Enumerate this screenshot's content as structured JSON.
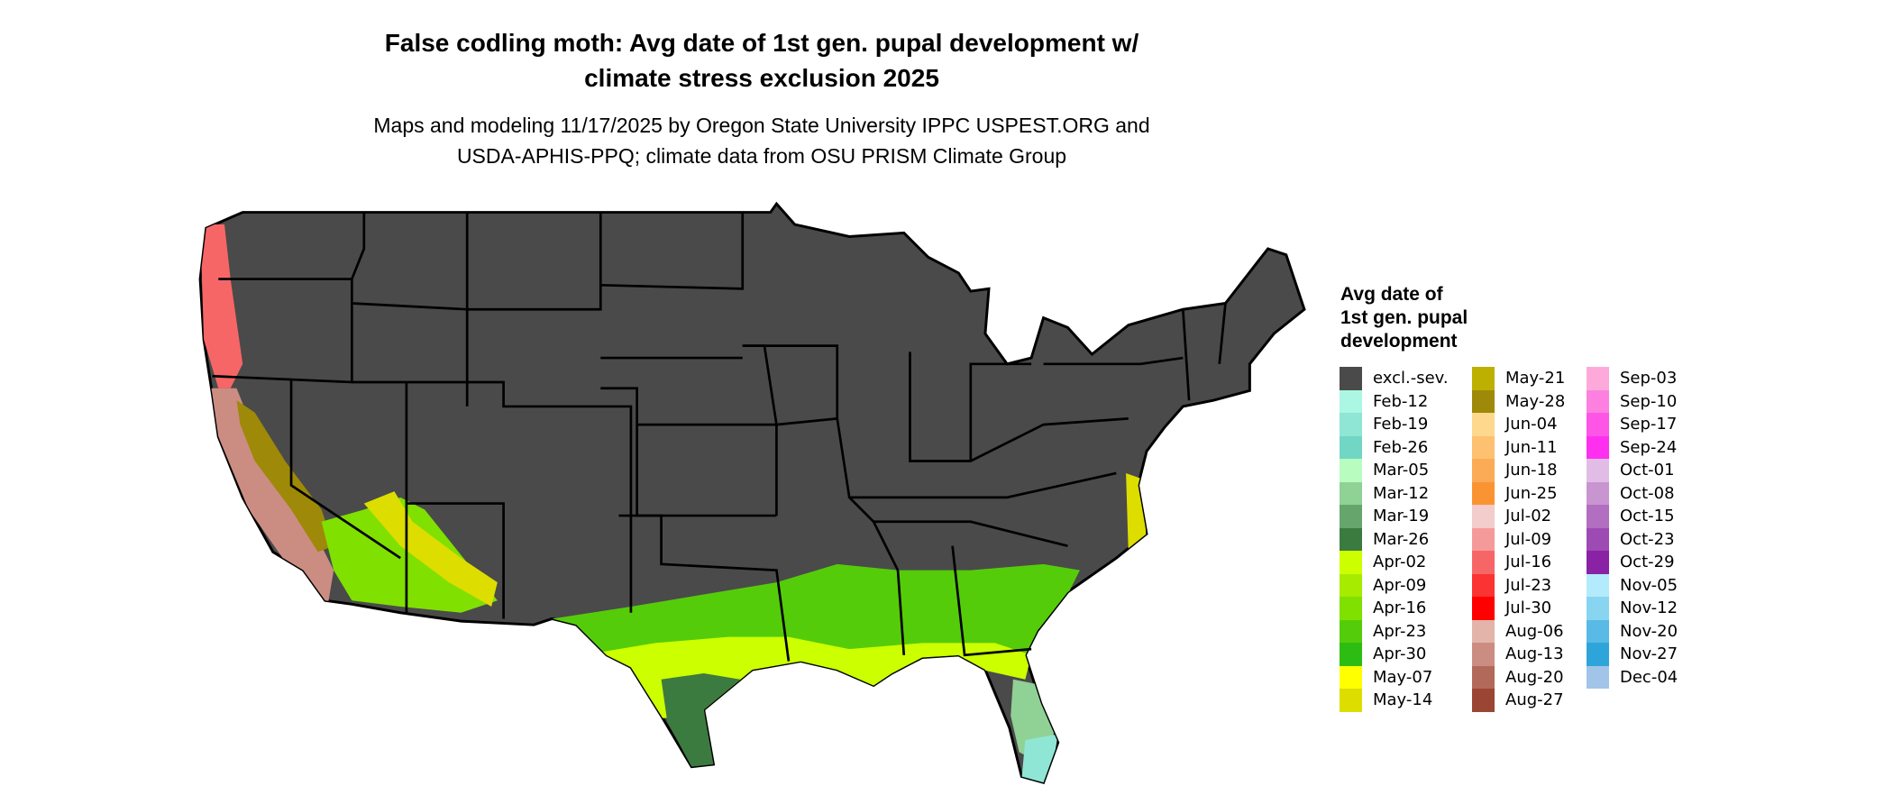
{
  "title": {
    "line1": "False codling moth: Avg date of 1st gen. pupal development w/",
    "line2": "climate stress exclusion 2025"
  },
  "subtitle": {
    "line1": "Maps and modeling 11/17/2025 by Oregon State University IPPC USPEST.ORG and",
    "line2": "USDA-APHIS-PPQ; climate data from OSU PRISM Climate Group"
  },
  "legend": {
    "title_lines": [
      "Avg date of",
      "1st gen. pupal",
      "development"
    ],
    "columns": [
      [
        {
          "label": "excl.-sev.",
          "color": "#4a4a4a"
        },
        {
          "label": "Feb-12",
          "color": "#abf7e3"
        },
        {
          "label": "Feb-19",
          "color": "#8fe6d4"
        },
        {
          "label": "Feb-26",
          "color": "#72d6c5"
        },
        {
          "label": "Mar-05",
          "color": "#b9fcc0"
        },
        {
          "label": "Mar-12",
          "color": "#90d196"
        },
        {
          "label": "Mar-19",
          "color": "#66a56b"
        },
        {
          "label": "Mar-26",
          "color": "#3c7b3f"
        },
        {
          "label": "Apr-02",
          "color": "#ccff00"
        },
        {
          "label": "Apr-09",
          "color": "#a6eb00"
        },
        {
          "label": "Apr-16",
          "color": "#80e000"
        },
        {
          "label": "Apr-23",
          "color": "#55cc0a"
        },
        {
          "label": "Apr-30",
          "color": "#2dbd12"
        },
        {
          "label": "May-07",
          "color": "#ffff00"
        },
        {
          "label": "May-14",
          "color": "#dddd00"
        }
      ],
      [
        {
          "label": "May-21",
          "color": "#bdb000"
        },
        {
          "label": "May-28",
          "color": "#9e8908"
        },
        {
          "label": "Jun-04",
          "color": "#fed88d"
        },
        {
          "label": "Jun-11",
          "color": "#fdc170"
        },
        {
          "label": "Jun-18",
          "color": "#fbaa55"
        },
        {
          "label": "Jun-25",
          "color": "#fa9432"
        },
        {
          "label": "Jul-02",
          "color": "#f3cccc"
        },
        {
          "label": "Jul-09",
          "color": "#f59a9a"
        },
        {
          "label": "Jul-16",
          "color": "#f76666"
        },
        {
          "label": "Jul-23",
          "color": "#fb3333"
        },
        {
          "label": "Jul-30",
          "color": "#ff0000"
        },
        {
          "label": "Aug-06",
          "color": "#e3b4aa"
        },
        {
          "label": "Aug-13",
          "color": "#cb8d82"
        },
        {
          "label": "Aug-20",
          "color": "#b2695a"
        },
        {
          "label": "Aug-27",
          "color": "#9b4634"
        }
      ],
      [
        {
          "label": "Sep-03",
          "color": "#fdaadb"
        },
        {
          "label": "Sep-10",
          "color": "#fd80e0"
        },
        {
          "label": "Sep-17",
          "color": "#fe55e6"
        },
        {
          "label": "Sep-24",
          "color": "#ff2ff0"
        },
        {
          "label": "Oct-01",
          "color": "#e1bde6"
        },
        {
          "label": "Oct-08",
          "color": "#c995d1"
        },
        {
          "label": "Oct-15",
          "color": "#b26ec0"
        },
        {
          "label": "Oct-23",
          "color": "#9e4ab3"
        },
        {
          "label": "Oct-29",
          "color": "#8a22a5"
        },
        {
          "label": "Nov-05",
          "color": "#b3ebfd"
        },
        {
          "label": "Nov-12",
          "color": "#88d5f1"
        },
        {
          "label": "Nov-20",
          "color": "#58bae5"
        },
        {
          "label": "Nov-27",
          "color": "#2da5da"
        },
        {
          "label": "Dec-04",
          "color": "#a1c4e8"
        }
      ]
    ]
  }
}
